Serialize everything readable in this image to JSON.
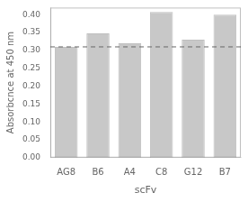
{
  "chart_data": {
    "type": "bar",
    "categories": [
      "AG8",
      "B6",
      "A4",
      "C8",
      "G12",
      "B7"
    ],
    "values": [
      0.31,
      0.348,
      0.32,
      0.408,
      0.33,
      0.4
    ],
    "color": "#c8c8c8",
    "hline": {
      "value": 0.31,
      "color": "#666666",
      "line_style": "dashed"
    },
    "xlabel": "scFv",
    "ylabel": "Absorbcnce at 450 nm",
    "ylim": [
      0.0,
      0.42
    ],
    "yticks": [
      {
        "value": 0.0,
        "label": "0.00"
      },
      0.05,
      {
        "value": 0.1,
        "label": "0.10"
      },
      0.15,
      {
        "value": 0.2,
        "label": "0.20"
      },
      0.25,
      {
        "value": 0.3,
        "label": "0.30"
      },
      0.35,
      {
        "value": 0.4,
        "label": "0.40"
      }
    ],
    "grid": false
  }
}
